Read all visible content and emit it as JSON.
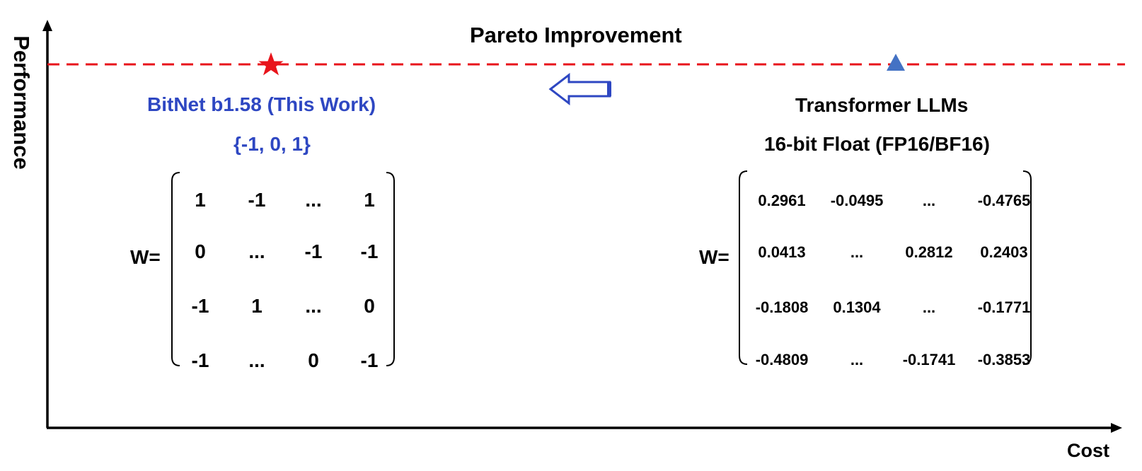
{
  "title": "Pareto Improvement",
  "axes": {
    "x_label": "Cost",
    "y_label": "Performance"
  },
  "left_model": {
    "name": "BitNet b1.58 (This Work)",
    "value_set": "{-1, 0, 1}",
    "matrix_label": "W=",
    "matrix": [
      [
        "1",
        "-1",
        "...",
        "1"
      ],
      [
        "0",
        "...",
        "-1",
        "-1"
      ],
      [
        "-1",
        "1",
        "...",
        "0"
      ],
      [
        "-1",
        "...",
        "0",
        "-1"
      ]
    ],
    "marker": "star",
    "color": "#2E47C2",
    "marker_color": "#E8141B"
  },
  "right_model": {
    "name": "Transformer LLMs",
    "precision": "16-bit Float (FP16/BF16)",
    "matrix_label": "W=",
    "matrix": [
      [
        "0.2961",
        "-0.0495",
        "...",
        "-0.4765"
      ],
      [
        "0.0413",
        "...",
        "0.2812",
        "0.2403"
      ],
      [
        "-0.1808",
        "0.1304",
        "...",
        "-0.1771"
      ],
      [
        "-0.4809",
        "...",
        "-0.1741",
        "-0.3853"
      ]
    ],
    "marker": "triangle",
    "marker_color": "#4472C4"
  },
  "arrow": {
    "direction": "left",
    "color": "#2E47C2"
  },
  "pareto_line_color": "#E8141B"
}
